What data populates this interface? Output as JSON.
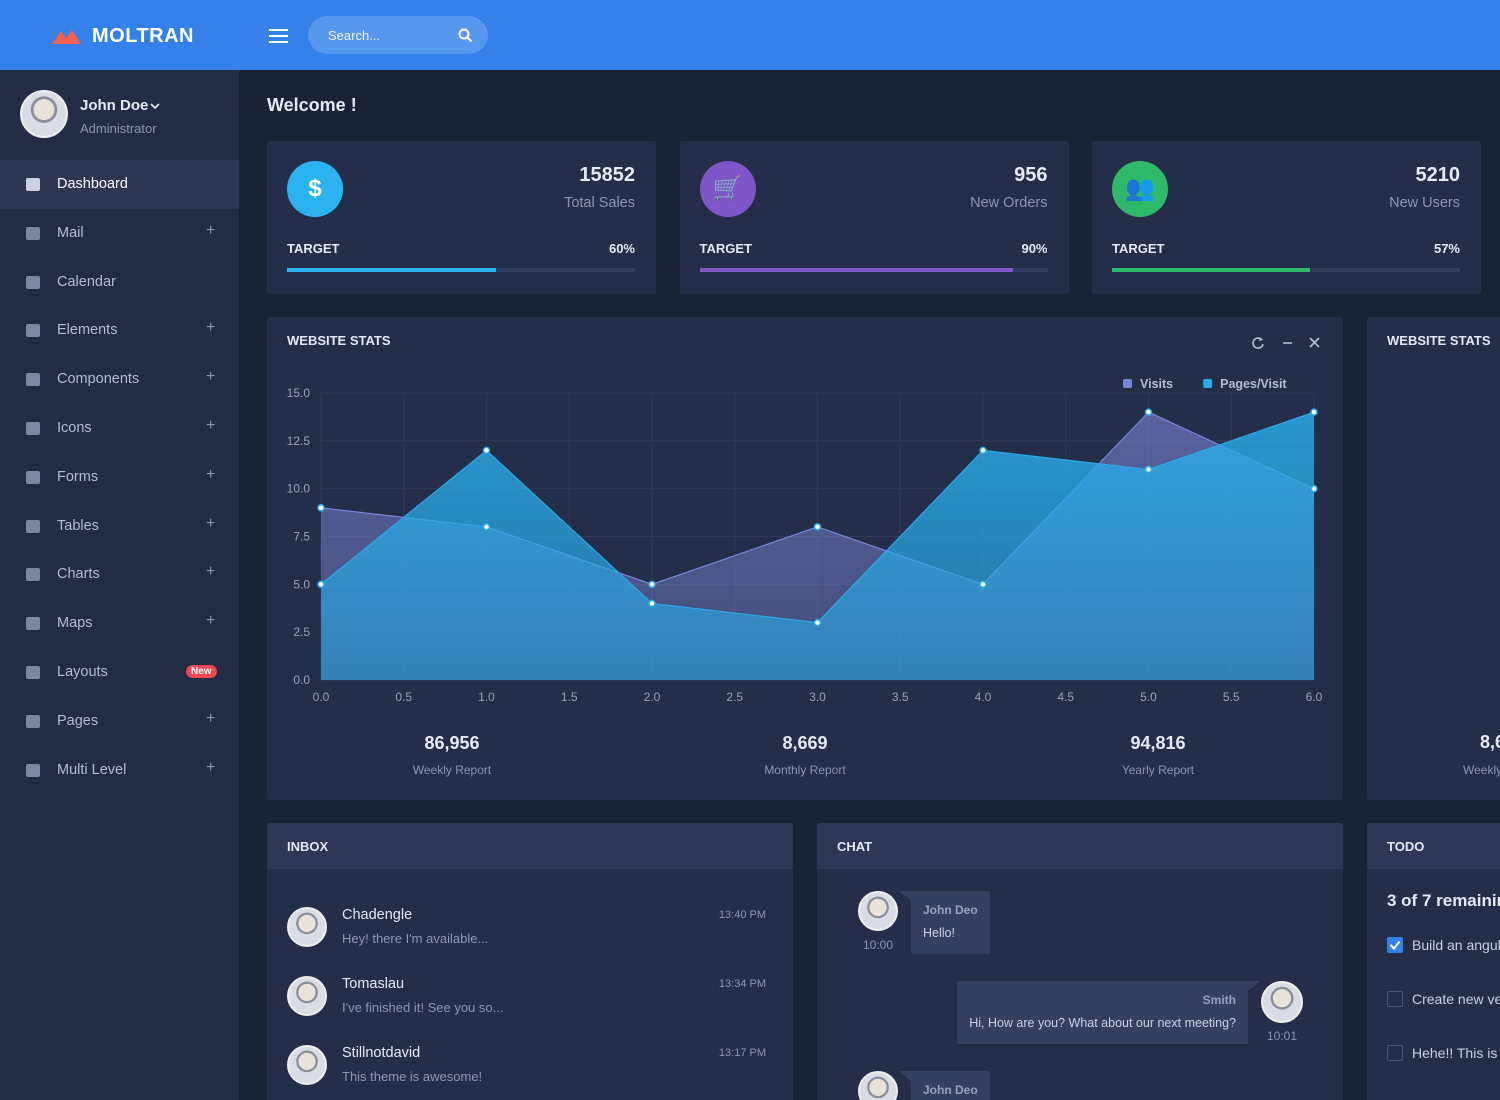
{
  "header": {
    "brand": "MOLTRAN",
    "search_placeholder": "Search..."
  },
  "user": {
    "name": "John Doe",
    "role": "Administrator"
  },
  "menu": [
    {
      "label": "Dashboard",
      "active": true
    },
    {
      "label": "Mail",
      "toggle": "+"
    },
    {
      "label": "Calendar"
    },
    {
      "label": "Elements",
      "toggle": "+"
    },
    {
      "label": "Components",
      "toggle": "+"
    },
    {
      "label": "Icons",
      "toggle": "+"
    },
    {
      "label": "Forms",
      "toggle": "+"
    },
    {
      "label": "Tables",
      "toggle": "+"
    },
    {
      "label": "Charts",
      "toggle": "+"
    },
    {
      "label": "Maps",
      "toggle": "+"
    },
    {
      "label": "Layouts",
      "badge": "New"
    },
    {
      "label": "Pages",
      "toggle": "+"
    },
    {
      "label": "Multi Level",
      "toggle": "+"
    }
  ],
  "welcome": "Welcome !",
  "stats": [
    {
      "value": 15852,
      "label": "Total Sales",
      "target": "TARGET",
      "percent": {
        "value": 60,
        "label": "60%"
      },
      "icon": "$",
      "color": "#2bb3ef"
    },
    {
      "value": 956,
      "label": "New Orders",
      "target": "TARGET",
      "percent": {
        "value": 90,
        "label": "90%"
      },
      "icon": "🛒",
      "color": "#7f56c8"
    },
    {
      "value": 5210,
      "label": "New Users",
      "target": "TARGET",
      "percent": {
        "value": 57,
        "label": "57%"
      },
      "icon": "👥",
      "color": "#2eb96a"
    }
  ],
  "chart_data": {
    "type": "area",
    "title": "WEBSITE STATS",
    "x": [
      0,
      1,
      2,
      3,
      4,
      5,
      6
    ],
    "series": [
      {
        "name": "Visits",
        "color": "#7a87d8",
        "values": [
          9,
          8,
          5,
          8,
          5,
          14,
          10
        ]
      },
      {
        "name": "Pages/Visit",
        "color": "#29abe8",
        "values": [
          5,
          12,
          4,
          3,
          12,
          11,
          14
        ]
      }
    ],
    "xlim": [
      0,
      6
    ],
    "xticks": [
      {
        "value": 0,
        "label": "0.0"
      },
      {
        "value": 0.5,
        "label": "0.5"
      },
      {
        "value": 1,
        "label": "1.0"
      },
      {
        "value": 1.5,
        "label": "1.5"
      },
      {
        "value": 2,
        "label": "2.0"
      },
      {
        "value": 2.5,
        "label": "2.5"
      },
      {
        "value": 3,
        "label": "3.0"
      },
      {
        "value": 3.5,
        "label": "3.5"
      },
      {
        "value": 4,
        "label": "4.0"
      },
      {
        "value": 4.5,
        "label": "4.5"
      },
      {
        "value": 5,
        "label": "5.0"
      },
      {
        "value": 5.5,
        "label": "5.5"
      },
      {
        "value": 6,
        "label": "6.0"
      }
    ],
    "ylim": [
      0,
      15
    ],
    "yticks": [
      {
        "value": 0,
        "label": "0.0"
      },
      {
        "value": 2.5,
        "label": "2.5"
      },
      {
        "value": 5,
        "label": "5.0"
      },
      {
        "value": 7.5,
        "label": "7.5"
      },
      {
        "value": 10,
        "label": "10.0"
      },
      {
        "value": 12.5,
        "label": "12.5"
      },
      {
        "value": 15,
        "label": "15.0"
      }
    ],
    "grid": true,
    "legend": "top-right"
  },
  "reports": [
    {
      "value": "86,956",
      "label": "Weekly Report"
    },
    {
      "value": "8,669",
      "label": "Monthly Report"
    },
    {
      "value": "94,816",
      "label": "Yearly Report"
    }
  ],
  "side_card": {
    "title": "WEBSITE STATS",
    "value": "8,6",
    "label": "Weekly"
  },
  "inbox": {
    "title": "INBOX",
    "messages": [
      {
        "name": "Chadengle",
        "text": "Hey! there I'm available...",
        "time": "13:40 PM"
      },
      {
        "name": "Tomaslau",
        "text": "I've finished it! See you so...",
        "time": "13:34 PM"
      },
      {
        "name": "Stillnotdavid",
        "text": "This theme is awesome!",
        "time": "13:17 PM"
      }
    ]
  },
  "chat": {
    "title": "CHAT",
    "messages": [
      {
        "name": "John Deo",
        "text": "Hello!",
        "time": "10:00",
        "side": "left"
      },
      {
        "name": "Smith",
        "text": "Hi, How are you? What about our next meeting?",
        "time": "10:01",
        "side": "right"
      },
      {
        "name": "John Deo",
        "side": "left"
      }
    ]
  },
  "todo": {
    "title": "TODO",
    "summary": "3 of 7 remainin",
    "items": [
      {
        "text": "Build an angul",
        "done": true
      },
      {
        "text": "Create new ve",
        "done": false
      },
      {
        "text": "Hehe!! This is",
        "done": false
      }
    ]
  }
}
